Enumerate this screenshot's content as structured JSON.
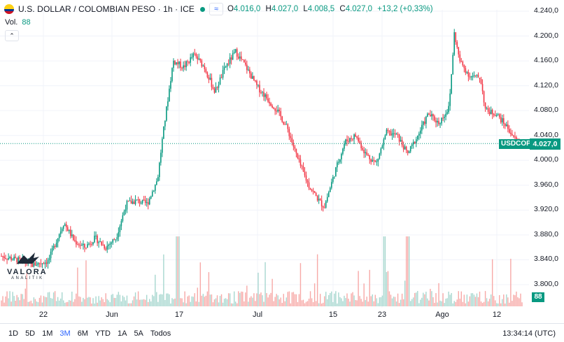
{
  "header": {
    "title": "U.S. DOLLAR / COLOMBIAN PESO · 1h · ICE",
    "compare_symbol": "≈",
    "ohlc": {
      "open_label": "O",
      "open": "4.016,0",
      "high_label": "H",
      "high": "4.027,0",
      "low_label": "L",
      "low": "4.008,5",
      "close_label": "C",
      "close": "4.027,0",
      "change": "+13,2 (+0,33%)"
    },
    "volume_label": "Vol.",
    "volume_value": "88",
    "collapse_icon": "chevron-up-icon"
  },
  "price_axis": {
    "ticks": [
      "4.240,0",
      "4.200,0",
      "4.160,0",
      "4.120,0",
      "4.080,0",
      "4.040,0",
      "4.000,0",
      "3.960,0",
      "3.920,0",
      "3.880,0",
      "3.840,0",
      "3.800,0"
    ]
  },
  "time_axis": {
    "ticks": [
      "22",
      "Jun",
      "17",
      "Jul",
      "15",
      "23",
      "Ago",
      "12"
    ]
  },
  "current": {
    "symbol": "USDCOP",
    "price": "4.027,0",
    "volume": "88",
    "color": "#089981"
  },
  "colors": {
    "up": "#089981",
    "down": "#f23645",
    "up_vol": "#a7d7cf",
    "down_vol": "#f7a9a7"
  },
  "watermark": {
    "name": "VALORA",
    "sub": "ANALITIK"
  },
  "bottom_bar": {
    "ranges": [
      "1D",
      "5D",
      "1M",
      "3M",
      "6M",
      "YTD",
      "1A",
      "5A",
      "Todos"
    ],
    "active_range": "3M",
    "clock": "13:34:14 (UTC)"
  },
  "chart_data": {
    "type": "candlestick",
    "symbol": "USDCOP",
    "interval": "1h",
    "ylim": [
      3780,
      4250
    ],
    "x_tick_labels": [
      "22",
      "Jun",
      "17",
      "Jul",
      "15",
      "23",
      "Ago",
      "12"
    ],
    "close_path": [
      [
        0,
        3846
      ],
      [
        0.03,
        3840
      ],
      [
        0.06,
        3832
      ],
      [
        0.09,
        3838
      ],
      [
        0.11,
        3880
      ],
      [
        0.12,
        3900
      ],
      [
        0.14,
        3870
      ],
      [
        0.16,
        3860
      ],
      [
        0.18,
        3875
      ],
      [
        0.2,
        3860
      ],
      [
        0.22,
        3875
      ],
      [
        0.24,
        3930
      ],
      [
        0.26,
        3935
      ],
      [
        0.28,
        3930
      ],
      [
        0.3,
        3970
      ],
      [
        0.31,
        4040
      ],
      [
        0.33,
        4160
      ],
      [
        0.35,
        4150
      ],
      [
        0.37,
        4170
      ],
      [
        0.39,
        4150
      ],
      [
        0.41,
        4110
      ],
      [
        0.43,
        4150
      ],
      [
        0.45,
        4175
      ],
      [
        0.47,
        4150
      ],
      [
        0.49,
        4120
      ],
      [
        0.51,
        4100
      ],
      [
        0.53,
        4080
      ],
      [
        0.55,
        4050
      ],
      [
        0.57,
        4000
      ],
      [
        0.59,
        3960
      ],
      [
        0.61,
        3935
      ],
      [
        0.62,
        3925
      ],
      [
        0.64,
        3980
      ],
      [
        0.66,
        4030
      ],
      [
        0.68,
        4040
      ],
      [
        0.7,
        4010
      ],
      [
        0.72,
        3995
      ],
      [
        0.74,
        4045
      ],
      [
        0.76,
        4040
      ],
      [
        0.78,
        4010
      ],
      [
        0.8,
        4040
      ],
      [
        0.82,
        4075
      ],
      [
        0.84,
        4060
      ],
      [
        0.86,
        4085
      ],
      [
        0.87,
        4205
      ],
      [
        0.88,
        4160
      ],
      [
        0.9,
        4135
      ],
      [
        0.92,
        4133
      ],
      [
        0.93,
        4080
      ],
      [
        0.95,
        4075
      ],
      [
        0.97,
        4055
      ],
      [
        0.99,
        4030
      ],
      [
        1.0,
        4027
      ]
    ]
  }
}
